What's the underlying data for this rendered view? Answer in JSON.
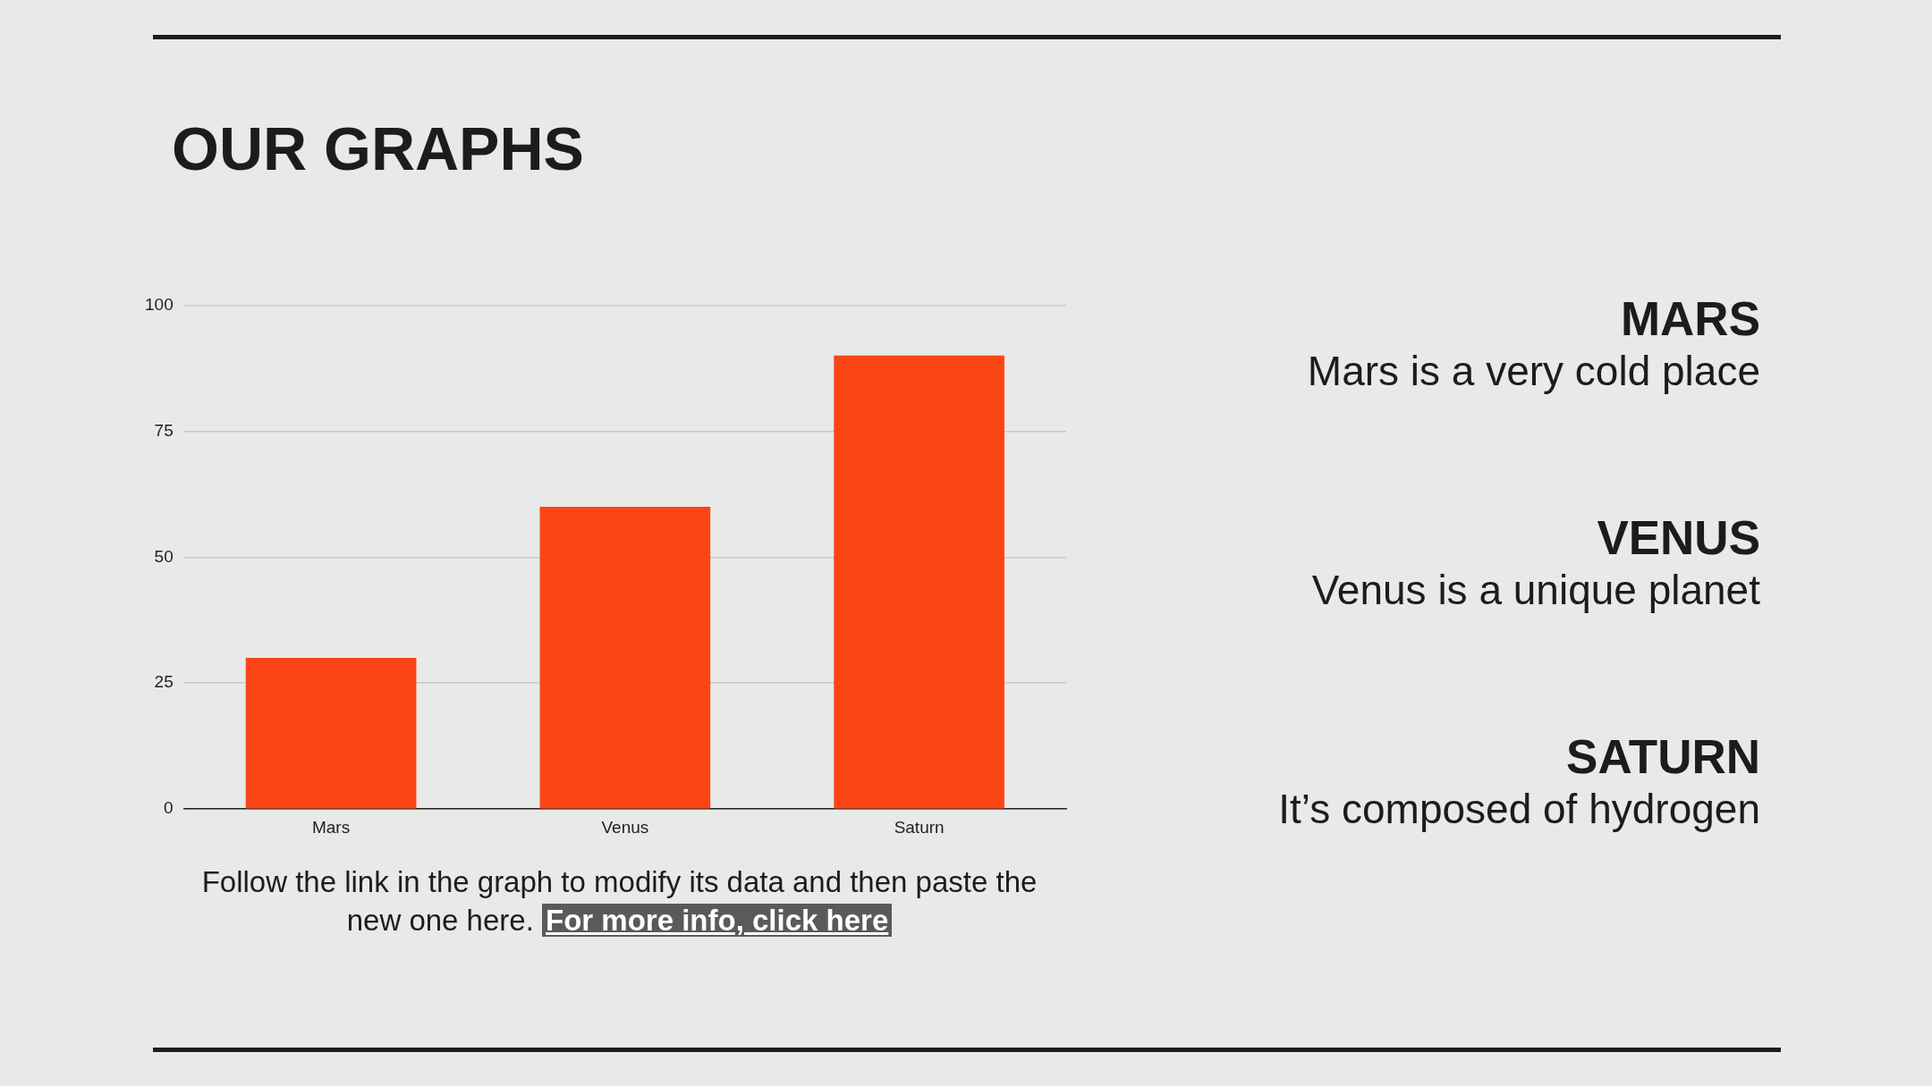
{
  "chart_data": {
    "type": "bar",
    "title": "OUR GRAPHS",
    "categories": [
      "Mars",
      "Venus",
      "Saturn"
    ],
    "values": [
      30,
      60,
      90
    ],
    "color": "#fc4516",
    "ylim": [
      0,
      100
    ],
    "yticks": [
      0,
      25,
      50,
      75,
      100
    ],
    "grid": "y",
    "legend": false,
    "annotations": [
      "Follow the link in the graph to modify its data and then paste the new one here.",
      "For more info, click here",
      "MARS",
      "Mars is a very cold place",
      "VENUS",
      "Venus is a unique planet",
      "SATURN",
      "It’s composed of hydrogen"
    ]
  }
}
